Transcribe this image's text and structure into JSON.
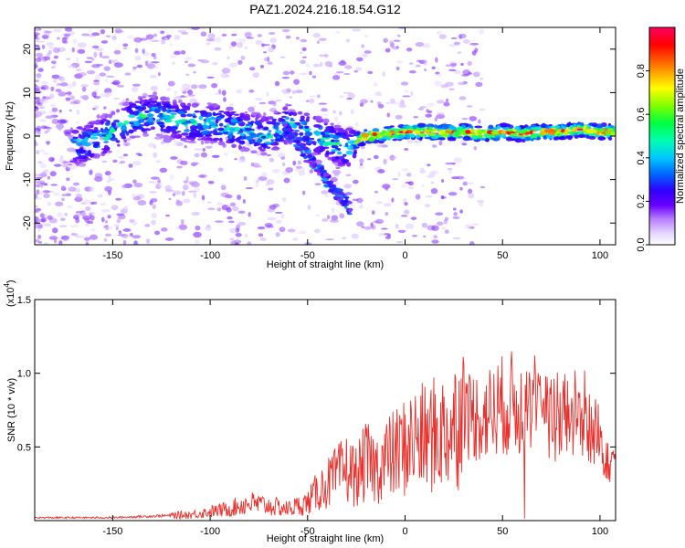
{
  "figure": {
    "title": "PAZ1.2024.216.18.54.G12"
  },
  "chart_data": [
    {
      "type": "heatmap",
      "xlabel": "Height of straight line (km)",
      "ylabel": "Frequency (Hz)",
      "xlim": [
        -190,
        108
      ],
      "ylim": [
        -25,
        25
      ],
      "xticks": [
        -150,
        -100,
        -50,
        0,
        50,
        100
      ],
      "xtick_labels": [
        "-150",
        "-100",
        "-50",
        "0",
        "50",
        "100"
      ],
      "yticks": [
        -20,
        -10,
        0,
        10,
        20
      ],
      "ytick_labels": [
        "-20",
        "-10",
        "0",
        "10",
        "20"
      ],
      "colorbar": {
        "label": "Normalized spectral amplitude",
        "range": [
          0,
          1
        ],
        "ticks": [
          0,
          0.2,
          0.4,
          0.6,
          0.8
        ],
        "tick_labels": [
          "0.0",
          "0.2",
          "0.4",
          "0.6",
          "0.8"
        ],
        "colormap": "rainbow (white-violet-blue-cyan-green-yellow-red)"
      },
      "ridge": {
        "x": [
          -165,
          -150,
          -140,
          -130,
          -120,
          -110,
          -100,
          -90,
          -80,
          -70,
          -60,
          -50,
          -40,
          -30,
          -25,
          -20,
          -10,
          0,
          10,
          20,
          30,
          40,
          50,
          60,
          70,
          80,
          90,
          100,
          108
        ],
        "y": [
          -2,
          1,
          4,
          5,
          4,
          3,
          3,
          2,
          1,
          0,
          3,
          1,
          -1,
          -3,
          -1,
          0,
          0.5,
          1,
          1,
          0.8,
          1,
          0.5,
          1,
          0.5,
          1,
          1,
          1.5,
          1,
          1
        ]
      },
      "grid": false
    },
    {
      "type": "line",
      "xlabel": "Height of straight line (km)",
      "ylabel": "SNR (10 * v/v)",
      "y_multiplier": "(x10",
      "y_multiplier_exp": "4",
      "y_multiplier_close": ")",
      "xlim": [
        -190,
        108
      ],
      "ylim": [
        0,
        1.5
      ],
      "xticks": [
        -150,
        -100,
        -50,
        0,
        50,
        100
      ],
      "xtick_labels": [
        "-150",
        "-100",
        "-50",
        "0",
        "50",
        "100"
      ],
      "yticks": [
        0.5,
        1.0,
        1.5
      ],
      "ytick_labels": [
        "0.5",
        "1.0",
        "1.5"
      ],
      "line_color": "#e8302c",
      "series": [
        {
          "x": [
            -190,
            -170,
            -150,
            -130,
            -110,
            -100,
            -90,
            -80,
            -70,
            -60,
            -50,
            -45,
            -40,
            -35,
            -30,
            -25,
            -20,
            -15,
            -10,
            -5,
            0,
            5,
            10,
            15,
            20,
            25,
            30,
            35,
            40,
            45,
            50,
            55,
            60,
            62,
            65,
            67,
            70,
            75,
            80,
            85,
            90,
            92,
            95,
            100,
            105,
            108
          ],
          "y": [
            0.02,
            0.02,
            0.02,
            0.03,
            0.04,
            0.06,
            0.08,
            0.12,
            0.1,
            0.08,
            0.12,
            0.2,
            0.25,
            0.3,
            0.35,
            0.3,
            0.4,
            0.35,
            0.42,
            0.45,
            0.5,
            0.55,
            0.55,
            0.58,
            0.6,
            0.65,
            0.7,
            0.72,
            0.7,
            0.75,
            0.78,
            0.8,
            0.75,
            0.7,
            0.72,
            0.8,
            0.68,
            0.7,
            0.72,
            0.7,
            0.75,
            0.72,
            0.6,
            0.55,
            0.45,
            0.4
          ]
        }
      ],
      "grid": false
    }
  ]
}
